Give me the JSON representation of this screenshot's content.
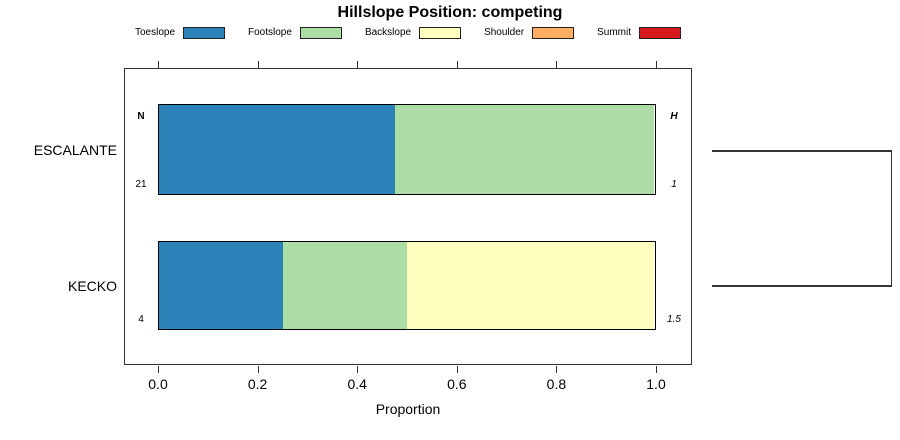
{
  "chart_data": {
    "type": "bar",
    "orientation": "horizontal_stacked_proportion",
    "title": "Hillslope Position: competing",
    "xlabel": "Proportion",
    "x_ticks": [
      "0.0",
      "0.2",
      "0.4",
      "0.6",
      "0.8",
      "1.0"
    ],
    "xlim": [
      0,
      1
    ],
    "grid": false,
    "legend_position": "top",
    "legend": [
      {
        "label": "Toeslope",
        "color": "#2B83BA"
      },
      {
        "label": "Footslope",
        "color": "#ABDDA4"
      },
      {
        "label": "Backslope",
        "color": "#FFFFBF"
      },
      {
        "label": "Shoulder",
        "color": "#FDAE61"
      },
      {
        "label": "Summit",
        "color": "#D7191C"
      }
    ],
    "columns": {
      "left_header": "N",
      "right_header": "H"
    },
    "categories": [
      "ESCALANTE",
      "KECKO"
    ],
    "series": [
      {
        "name": "ESCALANTE",
        "N": "21",
        "H": "1",
        "values": [
          0.476,
          0.524,
          0,
          0,
          0
        ]
      },
      {
        "name": "KECKO",
        "N": "4",
        "H": "1.5",
        "values": [
          0.25,
          0.25,
          0.5,
          0,
          0
        ]
      }
    ],
    "right_dendrogram": {
      "present": true,
      "joins": [
        "ESCALANTE",
        "KECKO"
      ]
    }
  }
}
